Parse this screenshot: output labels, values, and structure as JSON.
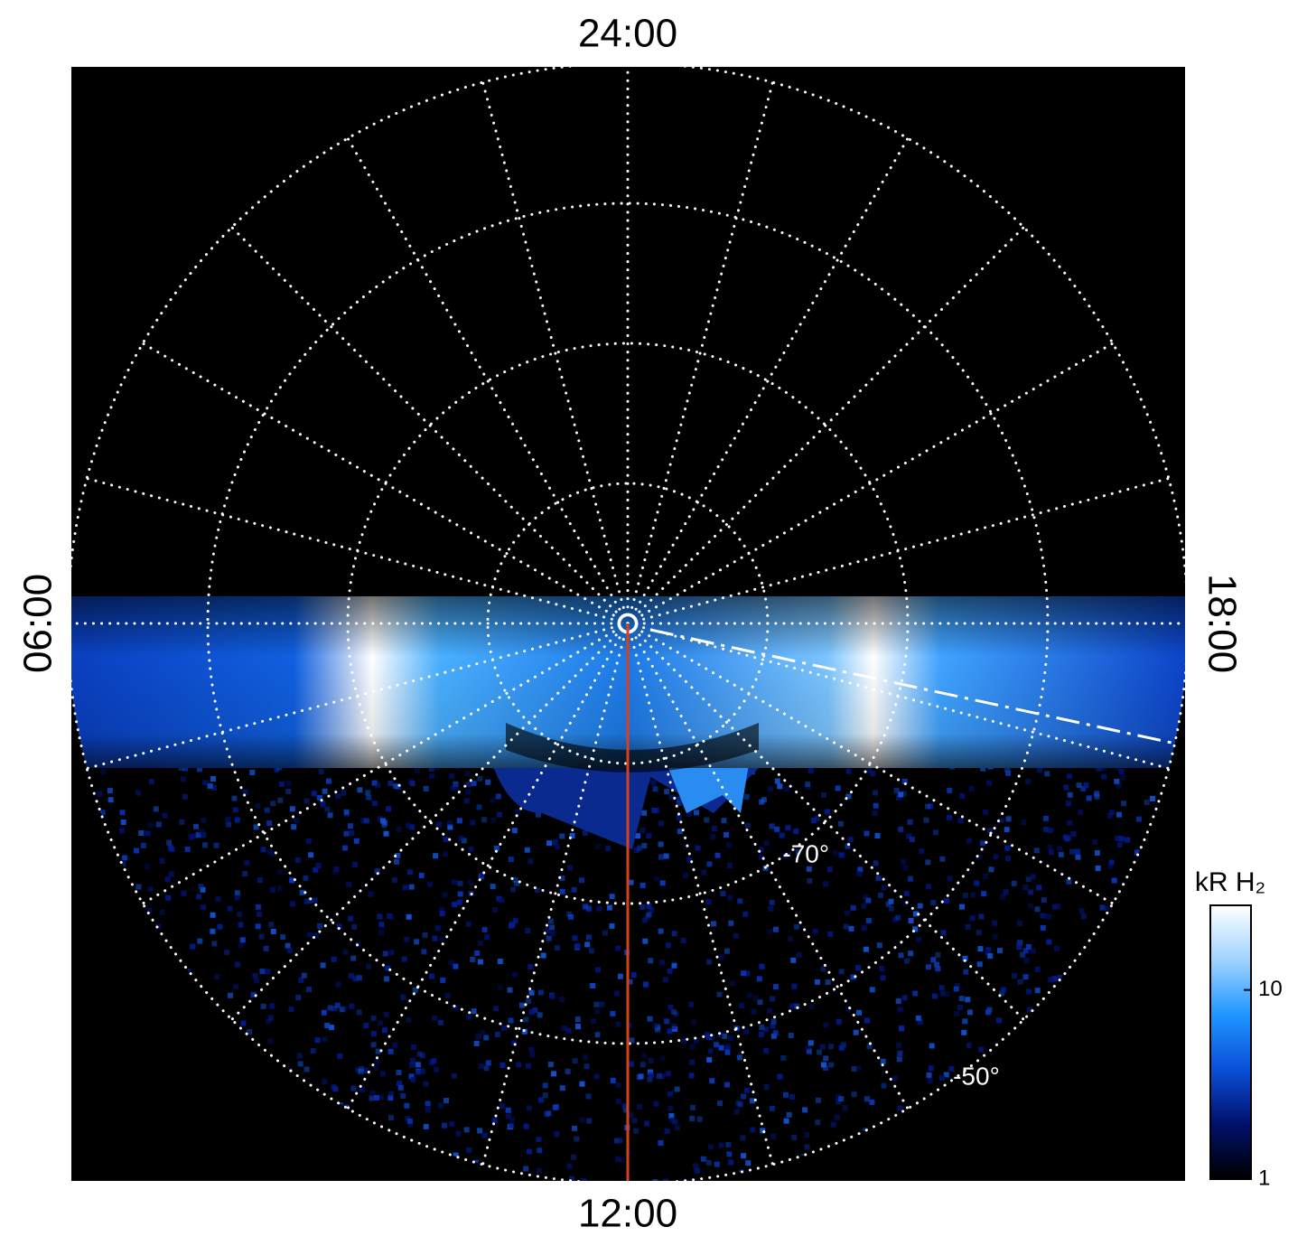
{
  "chart_data": {
    "type": "polar",
    "rlim": [
      -90,
      -50
    ],
    "rticks": [
      {
        "value": -80,
        "label": null
      },
      {
        "value": -70,
        "label": "-70°"
      },
      {
        "value": -60,
        "label": null
      },
      {
        "value": -50,
        "label": "-50°"
      }
    ],
    "xticks": [
      {
        "value": 0,
        "label": "24:00"
      },
      {
        "value": 6,
        "label": "06:00"
      },
      {
        "value": 12,
        "label": "12:00"
      },
      {
        "value": 18,
        "label": "18:00"
      }
    ],
    "hour_grid": 1,
    "colorbar": {
      "label": "kR H₂",
      "clim": [
        1,
        28
      ],
      "log": true,
      "ticks": [
        1,
        10
      ],
      "colors": [
        "#000000",
        "#00106a",
        "#0a4fd8",
        "#1e96ff",
        "#9fd3ff",
        "#ffffff"
      ]
    }
  }
}
